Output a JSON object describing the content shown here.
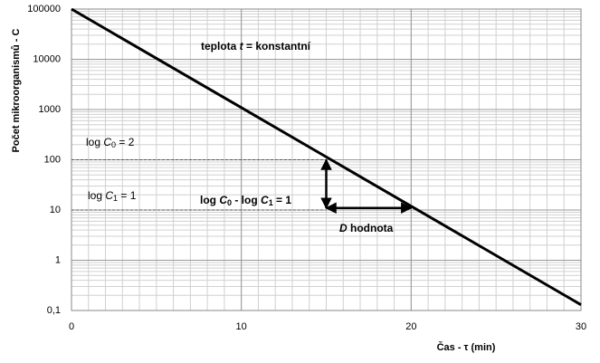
{
  "chart_data": {
    "type": "line",
    "y_log_scale": true,
    "grid": true,
    "x_minor_step": 1,
    "x_label": "Čas - τ (min)",
    "y_label": "Počet mikroorganismů - C",
    "xlim": [
      0,
      30
    ],
    "xticks": [
      0,
      10,
      20,
      30
    ],
    "ylim": [
      0.1,
      100000
    ],
    "yticks": [
      100000,
      10000,
      1000,
      100,
      10,
      1,
      {
        "value": 0.1,
        "label": "0,1"
      }
    ],
    "x": [
      0,
      30
    ],
    "series": [
      {
        "color": "#000000",
        "values": [
          100000,
          0.13
        ]
      }
    ],
    "reference_lines": [
      {
        "y": 100,
        "x": [
          0,
          15
        ]
      },
      {
        "y": 10,
        "x": [
          0,
          15
        ]
      }
    ],
    "arrows": [
      {
        "x": [
          15,
          15
        ],
        "y": [
          100,
          11
        ]
      },
      {
        "x": [
          15,
          20
        ],
        "y": [
          11,
          11
        ]
      }
    ],
    "annotations": [
      {
        "bold": true,
        "parts": [
          {
            "text": "teplota "
          },
          {
            "text": "t",
            "style": "italic"
          },
          {
            "text": " = konstantní"
          }
        ]
      },
      {
        "bold": false,
        "parts": [
          {
            "text": "log "
          },
          {
            "text": "C",
            "style": "italic"
          },
          {
            "text": "0",
            "style": "sub"
          },
          {
            "text": " = 2"
          }
        ]
      },
      {
        "bold": false,
        "parts": [
          {
            "text": "log "
          },
          {
            "text": "C",
            "style": "italic"
          },
          {
            "text": "1",
            "style": "sub"
          },
          {
            "text": " = 1"
          }
        ]
      },
      {
        "bold": true,
        "parts": [
          {
            "text": "log "
          },
          {
            "text": "C",
            "style": "italic"
          },
          {
            "text": "0",
            "style": "sub"
          },
          {
            "text": " - log "
          },
          {
            "text": "C",
            "style": "italic"
          },
          {
            "text": "1",
            "style": "sub"
          },
          {
            "text": " = 1"
          }
        ]
      },
      {
        "bold": true,
        "parts": [
          {
            "text": "D",
            "style": "italic"
          },
          {
            "text": " hodnota"
          }
        ]
      }
    ]
  }
}
